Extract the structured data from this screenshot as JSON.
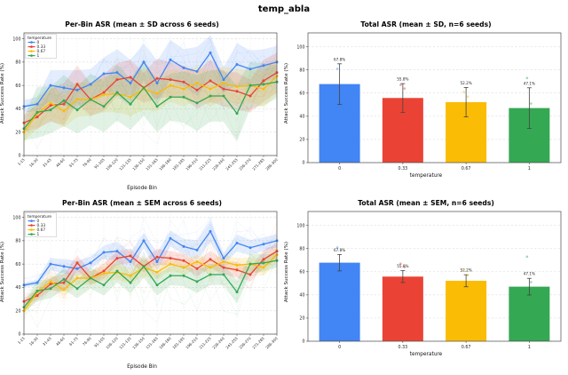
{
  "figure_title": "temp_abla",
  "palette": {
    "blue": "#4285F4",
    "red": "#EA4335",
    "yellow": "#FBBC05",
    "green": "#34A853",
    "frame": "#4a4a4a",
    "grid": "#cfcfcf",
    "text": "#222222"
  },
  "legend": {
    "title": "temperature",
    "entries": [
      "0",
      "0.33",
      "0.67",
      "1"
    ]
  },
  "chart_data": [
    {
      "type": "line",
      "title": "Per-Bin ASR (mean ± SD across 6 seeds)",
      "xlabel": "Episode Bin",
      "ylabel": "Attack Success Rate (%)",
      "band": "sd",
      "grid": true,
      "ylim": [
        0,
        105
      ],
      "y_ticks": [
        0,
        20,
        40,
        60,
        80,
        100
      ],
      "categories": [
        "1-15",
        "16-30",
        "31-45",
        "46-60",
        "61-75",
        "76-90",
        "91-105",
        "106-120",
        "121-135",
        "136-150",
        "151-165",
        "166-180",
        "181-195",
        "196-210",
        "211-225",
        "226-240",
        "241-255",
        "256-270",
        "271-285",
        "286-300"
      ],
      "series": [
        {
          "name": "0",
          "color": "#4285F4",
          "values": [
            42,
            44,
            60,
            58,
            56,
            61,
            70,
            71,
            62,
            80,
            62,
            82,
            75,
            72,
            88,
            65,
            78,
            74,
            77,
            80
          ],
          "sd": [
            5,
            6,
            13,
            15,
            17,
            13,
            14,
            20,
            20,
            16,
            19,
            17,
            16,
            21,
            22,
            11,
            18,
            16,
            14,
            14
          ]
        },
        {
          "name": "0.33",
          "color": "#EA4335",
          "values": [
            28,
            33,
            43,
            44,
            61,
            48,
            54,
            65,
            67,
            58,
            66,
            65,
            63,
            56,
            64,
            57,
            55,
            51,
            64,
            71
          ],
          "sd": [
            8,
            10,
            14,
            18,
            16,
            14,
            16,
            14,
            15,
            13,
            17,
            15,
            14,
            16,
            18,
            15,
            16,
            14,
            18,
            17
          ]
        },
        {
          "name": "0.67",
          "color": "#FBBC05",
          "values": [
            20,
            36,
            45,
            38,
            48,
            48,
            52,
            53,
            50,
            57,
            53,
            60,
            57,
            62,
            57,
            62,
            59,
            60,
            57,
            68
          ],
          "sd": [
            8,
            13,
            15,
            14,
            15,
            14,
            15,
            16,
            16,
            18,
            15,
            14,
            15,
            14,
            15,
            14,
            15,
            14,
            16,
            16
          ]
        },
        {
          "name": "1",
          "color": "#34A853",
          "values": [
            23,
            37,
            39,
            47,
            39,
            48,
            42,
            54,
            44,
            58,
            42,
            50,
            50,
            45,
            51,
            51,
            36,
            60,
            61,
            63
          ],
          "sd": [
            10,
            22,
            20,
            22,
            20,
            22,
            22,
            24,
            22,
            24,
            22,
            20,
            22,
            24,
            22,
            22,
            24,
            20,
            18,
            14
          ]
        }
      ]
    },
    {
      "type": "bar",
      "title": "Total ASR (mean ± SD, n=6 seeds)",
      "xlabel": "temperature",
      "ylabel": "Attack Success Rate (%)",
      "grid": true,
      "ylim": [
        0,
        112
      ],
      "y_ticks": [
        0,
        20,
        40,
        60,
        80,
        100
      ],
      "categories": [
        "0",
        "0.33",
        "0.67",
        "1"
      ],
      "values": [
        67.8,
        55.8,
        52.2,
        47.1
      ],
      "bar_labels": [
        "67.8%",
        "55.8%",
        "52.2%",
        "47.1%"
      ],
      "bar_colors": [
        "#4285F4",
        "#EA4335",
        "#FBBC05",
        "#34A853"
      ],
      "errors": [
        17.5,
        12.4,
        12.7,
        17.5
      ],
      "seed_points": [
        [
          81,
          66
        ],
        [
          67,
          64
        ],
        [
          61,
          57
        ],
        [
          73,
          51
        ]
      ]
    },
    {
      "type": "line",
      "title": "Per-Bin ASR (mean ± SEM across 6 seeds)",
      "xlabel": "Episode Bin",
      "ylabel": "Attack Success Rate (%)",
      "band": "sem",
      "grid": true,
      "ylim": [
        0,
        105
      ],
      "y_ticks": [
        0,
        20,
        40,
        60,
        80,
        100
      ],
      "categories": [
        "1-15",
        "16-30",
        "31-45",
        "46-60",
        "61-75",
        "76-90",
        "91-105",
        "106-120",
        "121-135",
        "136-150",
        "151-165",
        "166-180",
        "181-195",
        "196-210",
        "211-225",
        "226-240",
        "241-255",
        "256-270",
        "271-285",
        "286-300"
      ],
      "series": [
        {
          "name": "0",
          "color": "#4285F4",
          "values": [
            42,
            44,
            60,
            58,
            56,
            61,
            70,
            71,
            62,
            80,
            62,
            82,
            75,
            72,
            88,
            65,
            78,
            74,
            77,
            80
          ],
          "sd": [
            5,
            6,
            13,
            15,
            17,
            13,
            14,
            20,
            20,
            16,
            19,
            17,
            16,
            21,
            22,
            11,
            18,
            16,
            14,
            14
          ]
        },
        {
          "name": "0.33",
          "color": "#EA4335",
          "values": [
            28,
            33,
            43,
            44,
            61,
            48,
            54,
            65,
            67,
            58,
            66,
            65,
            63,
            56,
            64,
            57,
            55,
            51,
            64,
            71
          ],
          "sd": [
            8,
            10,
            14,
            18,
            16,
            14,
            16,
            14,
            15,
            13,
            17,
            15,
            14,
            16,
            18,
            15,
            16,
            14,
            18,
            17
          ]
        },
        {
          "name": "0.67",
          "color": "#FBBC05",
          "values": [
            20,
            36,
            45,
            38,
            48,
            48,
            52,
            53,
            50,
            57,
            53,
            60,
            57,
            62,
            57,
            62,
            59,
            60,
            57,
            68
          ],
          "sd": [
            8,
            13,
            15,
            14,
            15,
            14,
            15,
            16,
            16,
            18,
            15,
            14,
            15,
            14,
            15,
            14,
            15,
            14,
            16,
            16
          ]
        },
        {
          "name": "1",
          "color": "#34A853",
          "values": [
            23,
            37,
            39,
            47,
            39,
            48,
            42,
            54,
            44,
            58,
            42,
            50,
            50,
            45,
            51,
            51,
            36,
            60,
            61,
            63
          ],
          "sd": [
            10,
            22,
            20,
            22,
            20,
            22,
            22,
            24,
            22,
            24,
            22,
            20,
            22,
            24,
            22,
            22,
            24,
            20,
            18,
            14
          ]
        }
      ]
    },
    {
      "type": "bar",
      "title": "Total ASR (mean ± SEM, n=6 seeds)",
      "xlabel": "temperature",
      "ylabel": "Attack Success Rate (%)",
      "grid": true,
      "ylim": [
        0,
        112
      ],
      "y_ticks": [
        0,
        20,
        40,
        60,
        80,
        100
      ],
      "categories": [
        "0",
        "0.33",
        "0.67",
        "1"
      ],
      "values": [
        67.8,
        55.8,
        52.2,
        47.1
      ],
      "bar_labels": [
        "67.8%",
        "55.8%",
        "52.2%",
        "47.1%"
      ],
      "bar_colors": [
        "#4285F4",
        "#EA4335",
        "#FBBC05",
        "#34A853"
      ],
      "errors": [
        7.1,
        5.1,
        5.2,
        7.2
      ],
      "seed_points": [
        [
          81,
          66
        ],
        [
          67,
          64
        ],
        [
          61,
          57
        ],
        [
          73,
          51
        ]
      ]
    }
  ]
}
